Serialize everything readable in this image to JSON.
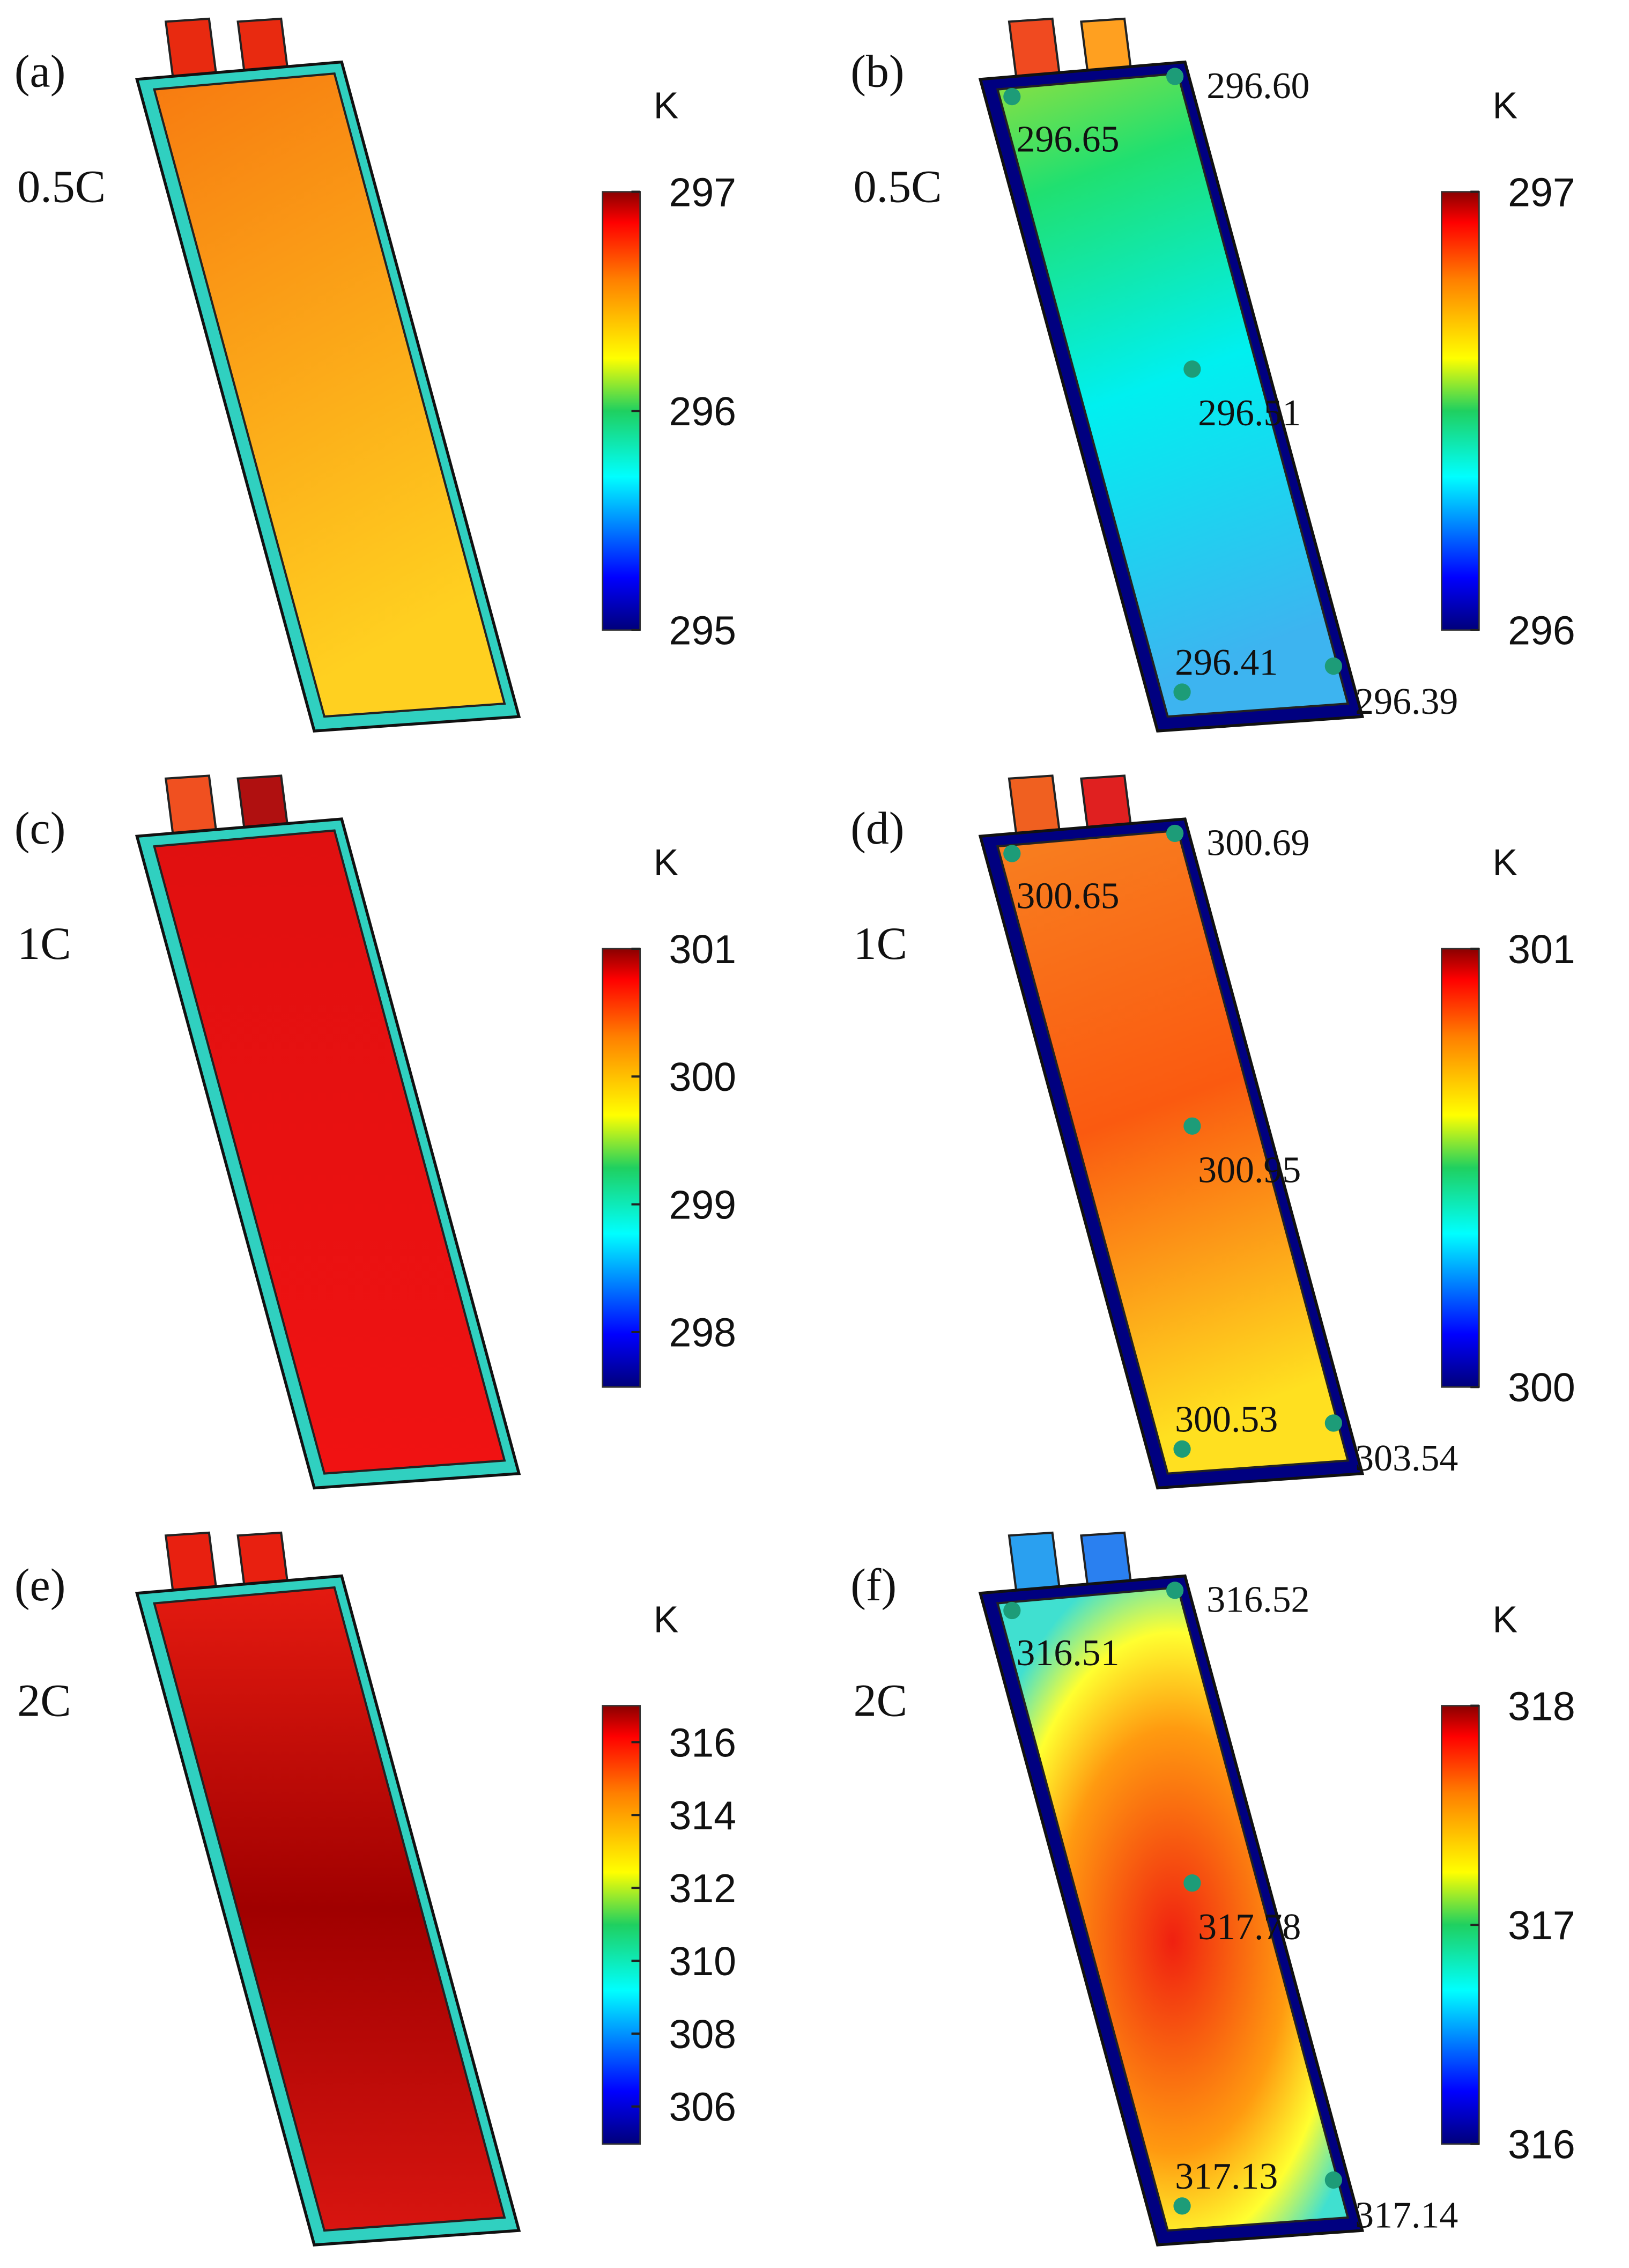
{
  "panels": [
    {
      "label": "(a)",
      "rate": "0.5C",
      "unit": "K",
      "colorbar": {
        "range": [
          295,
          297
        ],
        "ticks": [
          297,
          296,
          295
        ]
      },
      "points": []
    },
    {
      "label": "(b)",
      "rate": "0.5C",
      "unit": "K",
      "colorbar": {
        "range": [
          296,
          297
        ],
        "ticks": [
          297,
          296
        ]
      },
      "points": [
        "296.65",
        "296.60",
        "296.51",
        "296.41",
        "296.39"
      ]
    },
    {
      "label": "(c)",
      "rate": "1C",
      "unit": "K",
      "colorbar": {
        "range": [
          297.57,
          301
        ],
        "ticks": [
          301,
          300,
          299,
          298
        ]
      },
      "points": []
    },
    {
      "label": "(d)",
      "rate": "1C",
      "unit": "K",
      "colorbar": {
        "range": [
          300,
          301
        ],
        "ticks": [
          301,
          300
        ]
      },
      "points": [
        "300.65",
        "300.69",
        "300.95",
        "300.53",
        "303.54"
      ]
    },
    {
      "label": "(e)",
      "rate": "2C",
      "unit": "K",
      "colorbar": {
        "range": [
          304.97,
          317.0
        ],
        "ticks": [
          316,
          314,
          312,
          310,
          308,
          306
        ]
      },
      "points": []
    },
    {
      "label": "(f)",
      "rate": "2C",
      "unit": "K",
      "colorbar": {
        "range": [
          316,
          318
        ],
        "ticks": [
          318,
          317,
          316
        ]
      },
      "points": [
        "316.51",
        "316.52",
        "317.78",
        "317.13",
        "317.14"
      ]
    }
  ]
}
